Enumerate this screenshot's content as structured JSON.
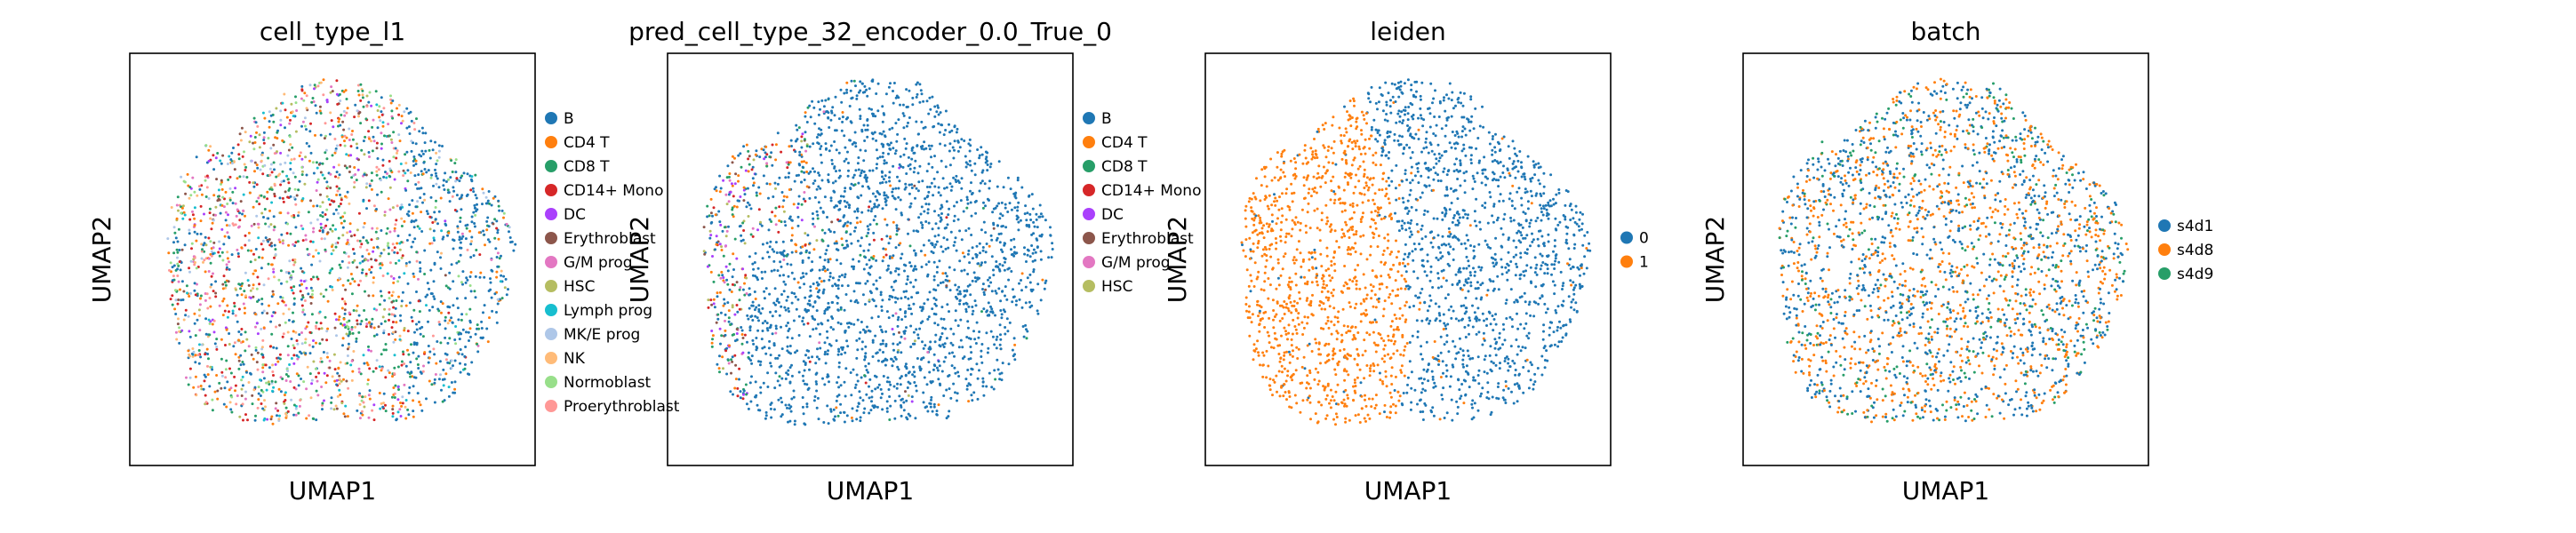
{
  "figure": {
    "panels": [
      {
        "title": "cell_type_l1",
        "xlabel": "UMAP1",
        "ylabel": "UMAP2"
      },
      {
        "title": "pred_cell_type_32_encoder_0.0_True_0",
        "xlabel": "UMAP1",
        "ylabel": "UMAP2"
      },
      {
        "title": "leiden",
        "xlabel": "UMAP1",
        "ylabel": "UMAP2"
      },
      {
        "title": "batch",
        "xlabel": "UMAP1",
        "ylabel": "UMAP2"
      }
    ]
  },
  "chart_data": [
    {
      "type": "scatter",
      "title": "cell_type_l1",
      "xlabel": "UMAP1",
      "ylabel": "UMAP2",
      "axis_ticks": false,
      "grid": false,
      "legend_placement": "right, outside plot",
      "legend": [
        {
          "label": "B",
          "color": "#1f77b4"
        },
        {
          "label": "CD4 T",
          "color": "#ff7f0e"
        },
        {
          "label": "CD8 T",
          "color": "#279e68"
        },
        {
          "label": "CD14+ Mono",
          "color": "#d62728"
        },
        {
          "label": "DC",
          "color": "#aa40fc"
        },
        {
          "label": "Erythroblast",
          "color": "#8c564b"
        },
        {
          "label": "G/M prog",
          "color": "#e377c2"
        },
        {
          "label": "HSC",
          "color": "#b5bd61"
        },
        {
          "label": "Lymph prog",
          "color": "#17becf"
        },
        {
          "label": "MK/E prog",
          "color": "#aec7e8"
        },
        {
          "label": "NK",
          "color": "#ffbb78"
        },
        {
          "label": "Normoblast",
          "color": "#98df8a"
        },
        {
          "label": "Proerythroblast",
          "color": "#ff9896"
        }
      ]
    },
    {
      "type": "scatter",
      "title": "pred_cell_type_32_encoder_0.0_True_0",
      "xlabel": "UMAP1",
      "ylabel": "UMAP2",
      "axis_ticks": false,
      "grid": false,
      "legend_placement": "right, outside plot",
      "legend": [
        {
          "label": "B",
          "color": "#1f77b4"
        },
        {
          "label": "CD4 T",
          "color": "#ff7f0e"
        },
        {
          "label": "CD8 T",
          "color": "#279e68"
        },
        {
          "label": "CD14+ Mono",
          "color": "#d62728"
        },
        {
          "label": "DC",
          "color": "#aa40fc"
        },
        {
          "label": "Erythroblast",
          "color": "#8c564b"
        },
        {
          "label": "G/M prog",
          "color": "#e377c2"
        },
        {
          "label": "HSC",
          "color": "#b5bd61"
        }
      ]
    },
    {
      "type": "scatter",
      "title": "leiden",
      "xlabel": "UMAP1",
      "ylabel": "UMAP2",
      "axis_ticks": false,
      "grid": false,
      "legend_placement": "right, outside plot",
      "legend": [
        {
          "label": "0",
          "color": "#1f77b4"
        },
        {
          "label": "1",
          "color": "#ff7f0e"
        }
      ]
    },
    {
      "type": "scatter",
      "title": "batch",
      "xlabel": "UMAP1",
      "ylabel": "UMAP2",
      "axis_ticks": false,
      "grid": false,
      "legend_placement": "right, outside plot",
      "legend": [
        {
          "label": "s4d1",
          "color": "#1f77b4"
        },
        {
          "label": "s4d8",
          "color": "#ff7f0e"
        },
        {
          "label": "s4d9",
          "color": "#279e68"
        }
      ]
    }
  ]
}
